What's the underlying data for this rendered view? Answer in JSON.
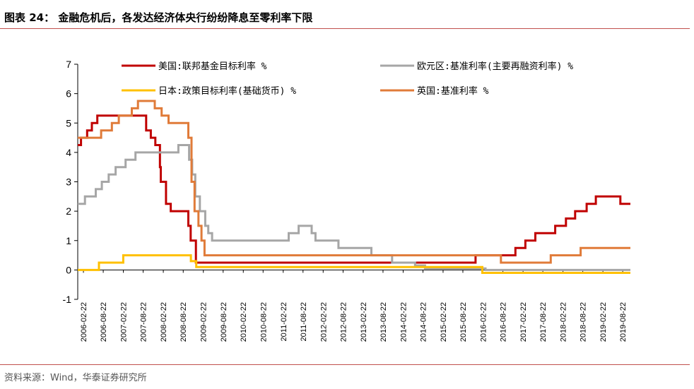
{
  "figure": {
    "title": "图表 24： 金融危机后，各发达经济体央行纷纷降息至零利率下限",
    "source": "资料来源：Wind，华泰证券研究所"
  },
  "chart_data": {
    "type": "line",
    "x_tick_labels": [
      "2006-02-22",
      "2006-08-22",
      "2007-02-22",
      "2007-08-22",
      "2008-02-22",
      "2008-08-22",
      "2009-02-22",
      "2009-08-22",
      "2010-02-22",
      "2010-08-22",
      "2011-02-22",
      "2011-08-22",
      "2012-02-22",
      "2012-08-22",
      "2013-02-22",
      "2013-08-22",
      "2014-02-22",
      "2014-08-22",
      "2015-02-22",
      "2015-08-22",
      "2016-02-22",
      "2016-08-22",
      "2017-02-22",
      "2017-08-22",
      "2018-02-22",
      "2018-08-22",
      "2019-02-22",
      "2019-08-22"
    ],
    "y_ticks": [
      -1,
      0,
      1,
      2,
      3,
      4,
      5,
      6,
      7
    ],
    "ylim": [
      -1,
      7
    ],
    "xlim": [
      "2006-01-01",
      "2019-10-31"
    ],
    "grid": false,
    "legend_position": "top",
    "series": [
      {
        "name": "美国:联邦基金目标利率 %",
        "color": "#c00000",
        "points": [
          [
            "2006-01-01",
            4.25
          ],
          [
            "2006-01-31",
            4.5
          ],
          [
            "2006-03-28",
            4.75
          ],
          [
            "2006-05-10",
            5.0
          ],
          [
            "2006-06-29",
            5.25
          ],
          [
            "2007-09-18",
            4.75
          ],
          [
            "2007-10-31",
            4.5
          ],
          [
            "2007-12-11",
            4.25
          ],
          [
            "2008-01-22",
            3.5
          ],
          [
            "2008-01-30",
            3.0
          ],
          [
            "2008-03-18",
            2.25
          ],
          [
            "2008-04-30",
            2.0
          ],
          [
            "2008-10-08",
            1.5
          ],
          [
            "2008-10-29",
            1.0
          ],
          [
            "2008-12-16",
            0.25
          ],
          [
            "2015-12-16",
            0.5
          ],
          [
            "2016-12-14",
            0.75
          ],
          [
            "2017-03-15",
            1.0
          ],
          [
            "2017-06-14",
            1.25
          ],
          [
            "2017-12-13",
            1.5
          ],
          [
            "2018-03-21",
            1.75
          ],
          [
            "2018-06-13",
            2.0
          ],
          [
            "2018-09-26",
            2.25
          ],
          [
            "2018-12-19",
            2.5
          ],
          [
            "2019-07-31",
            2.25
          ]
        ]
      },
      {
        "name": "欧元区:基准利率(主要再融资利率) %",
        "color": "#a6a6a6",
        "points": [
          [
            "2006-01-01",
            2.25
          ],
          [
            "2006-03-08",
            2.5
          ],
          [
            "2006-06-15",
            2.75
          ],
          [
            "2006-08-09",
            3.0
          ],
          [
            "2006-10-11",
            3.25
          ],
          [
            "2006-12-13",
            3.5
          ],
          [
            "2007-03-14",
            3.75
          ],
          [
            "2007-06-13",
            4.0
          ],
          [
            "2008-07-09",
            4.25
          ],
          [
            "2008-10-15",
            3.75
          ],
          [
            "2008-11-12",
            3.25
          ],
          [
            "2008-12-10",
            2.5
          ],
          [
            "2009-01-21",
            2.0
          ],
          [
            "2009-03-11",
            1.5
          ],
          [
            "2009-04-08",
            1.25
          ],
          [
            "2009-05-13",
            1.0
          ],
          [
            "2011-04-13",
            1.25
          ],
          [
            "2011-07-13",
            1.5
          ],
          [
            "2011-11-09",
            1.25
          ],
          [
            "2011-12-14",
            1.0
          ],
          [
            "2012-07-11",
            0.75
          ],
          [
            "2013-05-08",
            0.5
          ],
          [
            "2013-11-13",
            0.25
          ],
          [
            "2014-06-11",
            0.15
          ],
          [
            "2014-09-10",
            0.05
          ],
          [
            "2016-03-16",
            0.0
          ]
        ]
      },
      {
        "name": "日本:政策目标利率(基础货币) %",
        "color": "#ffc000",
        "points": [
          [
            "2006-01-01",
            0.0
          ],
          [
            "2006-07-14",
            0.25
          ],
          [
            "2007-02-21",
            0.5
          ],
          [
            "2008-10-31",
            0.3
          ],
          [
            "2008-12-19",
            0.1
          ],
          [
            "2016-02-16",
            -0.1
          ]
        ]
      },
      {
        "name": "英国:基准利率 %",
        "color": "#e07b39",
        "points": [
          [
            "2006-01-01",
            4.5
          ],
          [
            "2006-08-03",
            4.75
          ],
          [
            "2006-11-09",
            5.0
          ],
          [
            "2007-01-11",
            5.25
          ],
          [
            "2007-05-10",
            5.5
          ],
          [
            "2007-07-05",
            5.75
          ],
          [
            "2007-12-06",
            5.5
          ],
          [
            "2008-02-07",
            5.25
          ],
          [
            "2008-04-10",
            5.0
          ],
          [
            "2008-10-08",
            4.5
          ],
          [
            "2008-11-06",
            3.0
          ],
          [
            "2008-12-04",
            2.0
          ],
          [
            "2009-01-08",
            1.5
          ],
          [
            "2009-02-05",
            1.0
          ],
          [
            "2009-03-05",
            0.5
          ],
          [
            "2016-08-04",
            0.25
          ],
          [
            "2017-11-02",
            0.5
          ],
          [
            "2018-08-02",
            0.75
          ]
        ]
      }
    ]
  }
}
